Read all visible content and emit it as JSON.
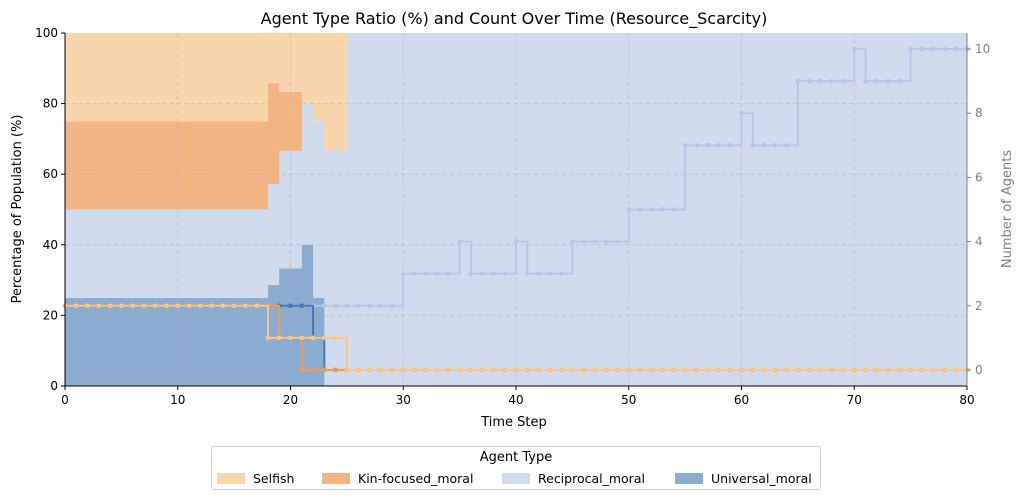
{
  "chart_data": {
    "type": "area",
    "title": "Agent Type Ratio (%) and Count Over Time (Resource_Scarcity)",
    "xlabel": "Time Step",
    "ylabel": "Percentage of Population (%)",
    "y2label": "Number of Agents",
    "xlim": [
      0,
      80
    ],
    "ylim": [
      0,
      100
    ],
    "y2lim": [
      -0.5,
      10.5
    ],
    "xticks": [
      "0",
      "10",
      "20",
      "30",
      "40",
      "50",
      "60",
      "70",
      "80"
    ],
    "yticks": [
      "0",
      "20",
      "40",
      "60",
      "80",
      "100"
    ],
    "y2ticks": [
      "0",
      "2",
      "4",
      "6",
      "8",
      "10"
    ],
    "grid": true,
    "legend_title": "Agent Type",
    "legend_placement": "bottom-center",
    "ratio_segments": [
      {
        "x0": 0,
        "x1": 18,
        "universal": 25,
        "reciprocal": 25,
        "kin": 25,
        "selfish": 25
      },
      {
        "x0": 18,
        "x1": 19,
        "universal": 28.6,
        "reciprocal": 28.6,
        "kin": 28.6,
        "selfish": 14.3
      },
      {
        "x0": 19,
        "x1": 21,
        "universal": 33.3,
        "reciprocal": 33.3,
        "kin": 16.7,
        "selfish": 16.7
      },
      {
        "x0": 21,
        "x1": 22,
        "universal": 40,
        "reciprocal": 40,
        "kin": 0,
        "selfish": 20
      },
      {
        "x0": 22,
        "x1": 23,
        "universal": 25,
        "reciprocal": 50,
        "kin": 0,
        "selfish": 25
      },
      {
        "x0": 23,
        "x1": 25,
        "universal": 0,
        "reciprocal": 66.7,
        "kin": 0,
        "selfish": 33.3
      },
      {
        "x0": 25,
        "x1": 80,
        "universal": 0,
        "reciprocal": 100,
        "kin": 0,
        "selfish": 0
      }
    ],
    "count_series": [
      {
        "name": "Selfish",
        "x": [
          0,
          18,
          25
        ],
        "values": [
          2,
          1,
          0
        ]
      },
      {
        "name": "Kin-focused_moral",
        "x": [
          0,
          19,
          21
        ],
        "values": [
          2,
          1,
          0
        ]
      },
      {
        "name": "Reciprocal_moral",
        "x": [
          0,
          30,
          35,
          36,
          40,
          41,
          45,
          50,
          55,
          60,
          61,
          65,
          70,
          71,
          75
        ],
        "values": [
          2,
          3,
          4,
          3,
          4,
          3,
          4,
          5,
          7,
          8,
          7,
          9,
          10,
          9,
          10
        ]
      },
      {
        "name": "Universal_moral",
        "x": [
          0,
          22,
          23
        ],
        "values": [
          2,
          1,
          0
        ]
      }
    ],
    "legend": [
      {
        "name": "Selfish",
        "color": "#f9d5ab"
      },
      {
        "name": "Kin-focused_moral",
        "color": "#f2b482"
      },
      {
        "name": "Reciprocal_moral",
        "color": "#d0dcee"
      },
      {
        "name": "Universal_moral",
        "color": "#8aacd0"
      }
    ],
    "line_colors": {
      "Selfish": "#f8c58c",
      "Kin-focused_moral": "#ee9b57",
      "Reciprocal_moral": "#b4c9e8",
      "Universal_moral": "#4a78b0"
    }
  }
}
